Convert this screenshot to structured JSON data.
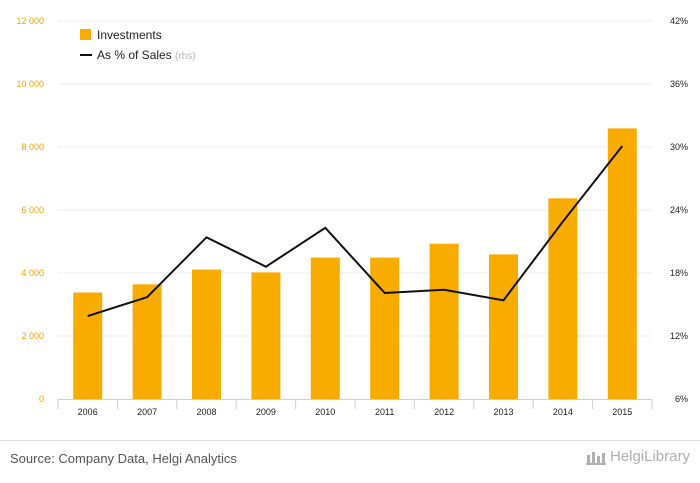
{
  "chart_data": {
    "type": "bar",
    "categories": [
      "2006",
      "2007",
      "2008",
      "2009",
      "2010",
      "2011",
      "2012",
      "2013",
      "2014",
      "2015"
    ],
    "series": [
      {
        "name": "Investments",
        "type": "bar",
        "axis": "left",
        "values": [
          3380,
          3640,
          4110,
          4020,
          4490,
          4490,
          4930,
          4590,
          6370,
          8590
        ]
      },
      {
        "name": "As % of Sales",
        "type": "line",
        "axis": "right",
        "values": [
          13.9,
          15.7,
          21.4,
          18.6,
          22.3,
          16.1,
          16.4,
          15.4,
          22.9,
          30.1
        ]
      }
    ],
    "left_axis": {
      "ticks": [
        "0",
        "2 000",
        "4 000",
        "6 000",
        "8 000",
        "10 000",
        "12 000"
      ],
      "ylim": [
        0,
        12000
      ]
    },
    "right_axis": {
      "ticks": [
        "6%",
        "12%",
        "18%",
        "24%",
        "30%",
        "36%",
        "42%"
      ],
      "ylim": [
        6,
        42
      ]
    },
    "legend": [
      {
        "label": "Investments",
        "suffix": ""
      },
      {
        "label": "As % of Sales",
        "suffix": "(rhs)"
      }
    ],
    "legend_position": "top-left",
    "grid": true,
    "colors": {
      "bar": "#f9ac00",
      "line": "#111111",
      "left_tick": "#f0a500",
      "grid": "#ececec"
    }
  },
  "footer": {
    "source": "Source: Company Data, Helgi Analytics",
    "logo_text": "HelgiLibrary"
  }
}
